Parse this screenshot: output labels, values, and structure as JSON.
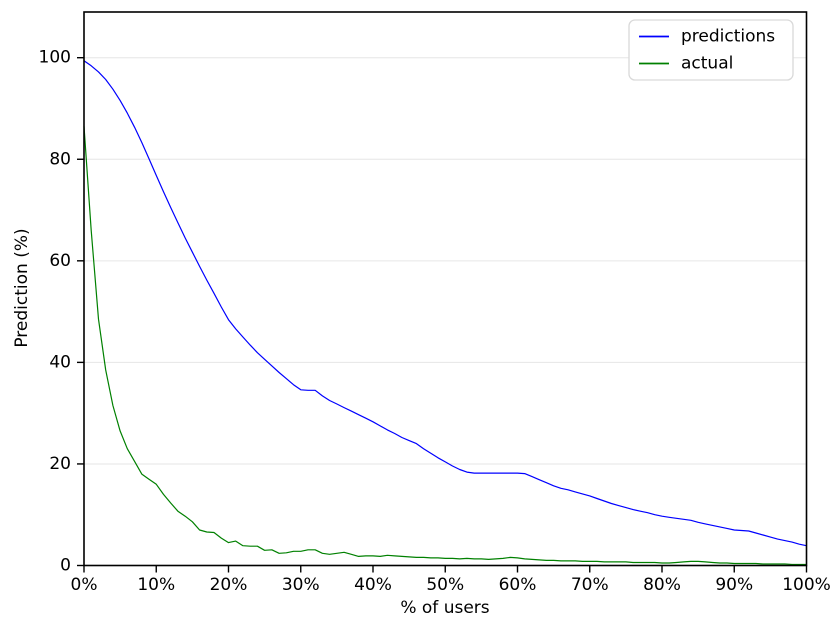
{
  "chart_data": {
    "type": "line",
    "title": "",
    "xlabel": "% of users",
    "ylabel": "Prediction (%)",
    "xlim": [
      0,
      100
    ],
    "ylim": [
      0,
      109
    ],
    "grid": "horizontal-only",
    "grid_color": "#e6e6e6",
    "spine_color": "#000000",
    "background_color": "#ffffff",
    "legend": {
      "position": "upper right",
      "border_color": "#d9d9d9",
      "fill": "#ffffff"
    },
    "xticks": {
      "values": [
        0,
        10,
        20,
        30,
        40,
        50,
        60,
        70,
        80,
        90,
        100
      ],
      "labels": [
        "0%",
        "10%",
        "20%",
        "30%",
        "40%",
        "50%",
        "60%",
        "70%",
        "80%",
        "90%",
        "100%"
      ]
    },
    "yticks": {
      "values": [
        0,
        20,
        40,
        60,
        80,
        100
      ],
      "labels": [
        "0",
        "20",
        "40",
        "60",
        "80",
        "100"
      ]
    },
    "x": [
      0,
      1,
      2,
      3,
      4,
      5,
      6,
      7,
      8,
      9,
      10,
      11,
      12,
      13,
      14,
      15,
      16,
      17,
      18,
      19,
      20,
      21,
      22,
      23,
      24,
      25,
      26,
      27,
      28,
      29,
      30,
      31,
      32,
      33,
      34,
      35,
      36,
      37,
      38,
      39,
      40,
      41,
      42,
      43,
      44,
      45,
      46,
      47,
      48,
      49,
      50,
      51,
      52,
      53,
      54,
      55,
      56,
      57,
      58,
      59,
      60,
      61,
      62,
      63,
      64,
      65,
      66,
      67,
      68,
      69,
      70,
      71,
      72,
      73,
      74,
      75,
      76,
      77,
      78,
      79,
      80,
      81,
      82,
      83,
      84,
      85,
      86,
      87,
      88,
      89,
      90,
      91,
      92,
      93,
      94,
      95,
      96,
      97,
      98,
      99,
      100
    ],
    "series": [
      {
        "name": "predictions",
        "color": "#0000ff",
        "values": [
          99.4,
          98.4,
          97.2,
          95.7,
          93.8,
          91.6,
          89.1,
          86.3,
          83.3,
          80.1,
          76.8,
          73.6,
          70.5,
          67.5,
          64.5,
          61.7,
          58.9,
          56.2,
          53.6,
          50.9,
          48.4,
          46.6,
          45.0,
          43.4,
          41.9,
          40.6,
          39.3,
          38.0,
          36.8,
          35.6,
          34.6,
          34.5,
          34.5,
          33.4,
          32.5,
          31.8,
          31.1,
          30.4,
          29.7,
          29.0,
          28.3,
          27.5,
          26.7,
          26.0,
          25.2,
          24.6,
          24.0,
          23.0,
          22.1,
          21.2,
          20.4,
          19.6,
          18.9,
          18.4,
          18.2,
          18.2,
          18.2,
          18.2,
          18.2,
          18.2,
          18.2,
          18.1,
          17.5,
          16.9,
          16.3,
          15.7,
          15.2,
          14.9,
          14.5,
          14.1,
          13.7,
          13.2,
          12.7,
          12.2,
          11.8,
          11.4,
          11.0,
          10.7,
          10.4,
          10.0,
          9.7,
          9.5,
          9.3,
          9.1,
          8.9,
          8.5,
          8.2,
          7.9,
          7.6,
          7.3,
          7.0,
          6.9,
          6.8,
          6.4,
          6.0,
          5.6,
          5.2,
          4.9,
          4.6,
          4.2,
          3.9
        ]
      },
      {
        "name": "actual",
        "color": "#008000",
        "values": [
          86.5,
          66.0,
          48.5,
          38.5,
          31.5,
          26.5,
          23.0,
          20.5,
          18.0,
          17.0,
          16.0,
          14.0,
          12.3,
          10.7,
          9.7,
          8.6,
          7.0,
          6.6,
          6.5,
          5.4,
          4.5,
          4.8,
          3.9,
          3.8,
          3.8,
          3.0,
          3.1,
          2.4,
          2.5,
          2.8,
          2.8,
          3.1,
          3.1,
          2.4,
          2.2,
          2.4,
          2.6,
          2.2,
          1.8,
          1.9,
          1.9,
          1.8,
          2.0,
          1.9,
          1.8,
          1.7,
          1.6,
          1.6,
          1.5,
          1.5,
          1.4,
          1.4,
          1.3,
          1.4,
          1.3,
          1.3,
          1.2,
          1.3,
          1.4,
          1.6,
          1.5,
          1.3,
          1.2,
          1.1,
          1.0,
          1.0,
          0.9,
          0.9,
          0.9,
          0.8,
          0.8,
          0.8,
          0.7,
          0.7,
          0.7,
          0.7,
          0.6,
          0.6,
          0.6,
          0.6,
          0.5,
          0.5,
          0.6,
          0.7,
          0.8,
          0.8,
          0.7,
          0.6,
          0.5,
          0.5,
          0.4,
          0.4,
          0.4,
          0.4,
          0.3,
          0.3,
          0.3,
          0.3,
          0.2,
          0.2,
          0.2
        ]
      }
    ]
  }
}
